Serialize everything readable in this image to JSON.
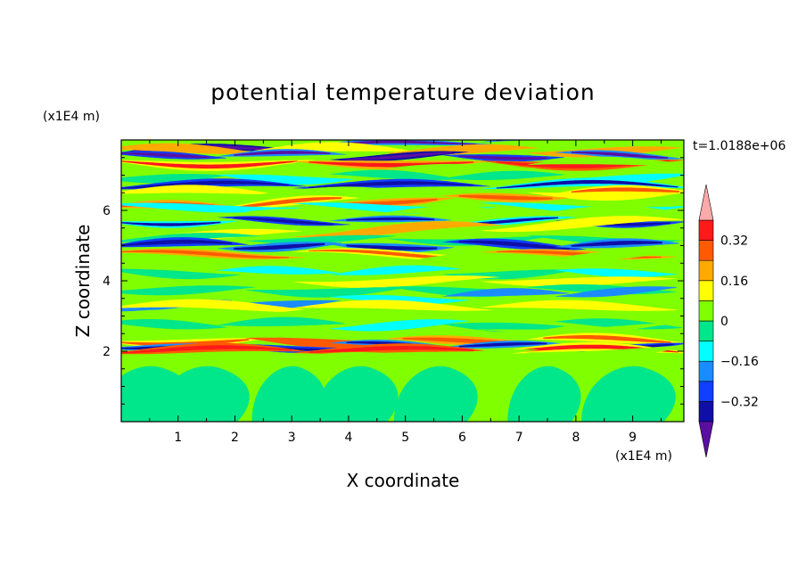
{
  "chart_data": {
    "type": "heatmap",
    "title": "potential temperature deviation",
    "xlabel": "X coordinate",
    "ylabel": "Z coordinate",
    "x_unit": "(x1E4 m)",
    "y_unit": "(x1E4 m)",
    "time_label": "t=1.0188e+06",
    "xlim": [
      0,
      9.9
    ],
    "ylim": [
      0,
      8.0
    ],
    "x_ticks": [
      1,
      2,
      3,
      4,
      5,
      6,
      7,
      8,
      9
    ],
    "y_ticks": [
      2,
      4,
      6
    ],
    "colorbar": {
      "levels": [
        -0.4,
        -0.32,
        -0.24,
        -0.16,
        -0.08,
        0,
        0.08,
        0.16,
        0.24,
        0.32,
        0.4
      ],
      "tick_labels": [
        {
          "value": 0.32,
          "label": "0.32"
        },
        {
          "value": 0.16,
          "label": "0.16"
        },
        {
          "value": 0,
          "label": "0"
        },
        {
          "value": -0.16,
          "label": "−0.16"
        },
        {
          "value": -0.32,
          "label": "−0.32"
        }
      ],
      "colors": [
        "#5a0fa0",
        "#0f0fa8",
        "#1040ff",
        "#1a8cff",
        "#00ffff",
        "#00e68a",
        "#80ff00",
        "#ffff00",
        "#ffaa00",
        "#ff5a00",
        "#ff1a1a",
        "#ffaaaa"
      ]
    },
    "z_bands": [
      {
        "z": 7.88,
        "v": -0.35
      },
      {
        "z": 7.7,
        "v": 0.2
      },
      {
        "z": 7.55,
        "v": -0.36
      },
      {
        "z": 7.35,
        "v": 0.3
      },
      {
        "z": 7.15,
        "v": 0.05
      },
      {
        "z": 6.95,
        "v": -0.1
      },
      {
        "z": 6.7,
        "v": -0.3
      },
      {
        "z": 6.5,
        "v": 0.1
      },
      {
        "z": 6.3,
        "v": 0.25
      },
      {
        "z": 6.1,
        "v": -0.15
      },
      {
        "z": 5.9,
        "v": 0.05
      },
      {
        "z": 5.7,
        "v": -0.28
      },
      {
        "z": 5.45,
        "v": 0.18
      },
      {
        "z": 5.2,
        "v": -0.05
      },
      {
        "z": 5.0,
        "v": -0.3
      },
      {
        "z": 4.75,
        "v": 0.22
      },
      {
        "z": 4.5,
        "v": 0.05
      },
      {
        "z": 4.25,
        "v": -0.12
      },
      {
        "z": 4.0,
        "v": 0.12
      },
      {
        "z": 3.75,
        "v": -0.05
      },
      {
        "z": 3.5,
        "v": -0.2
      },
      {
        "z": 3.25,
        "v": 0.15
      },
      {
        "z": 3.0,
        "v": 0.02
      },
      {
        "z": 2.75,
        "v": -0.1
      },
      {
        "z": 2.5,
        "v": 0.06
      },
      {
        "z": 2.3,
        "v": 0.25
      },
      {
        "z": 2.15,
        "v": -0.32
      },
      {
        "z": 2.02,
        "v": 0.3
      },
      {
        "z": 1.85,
        "v": 0.05
      }
    ]
  }
}
